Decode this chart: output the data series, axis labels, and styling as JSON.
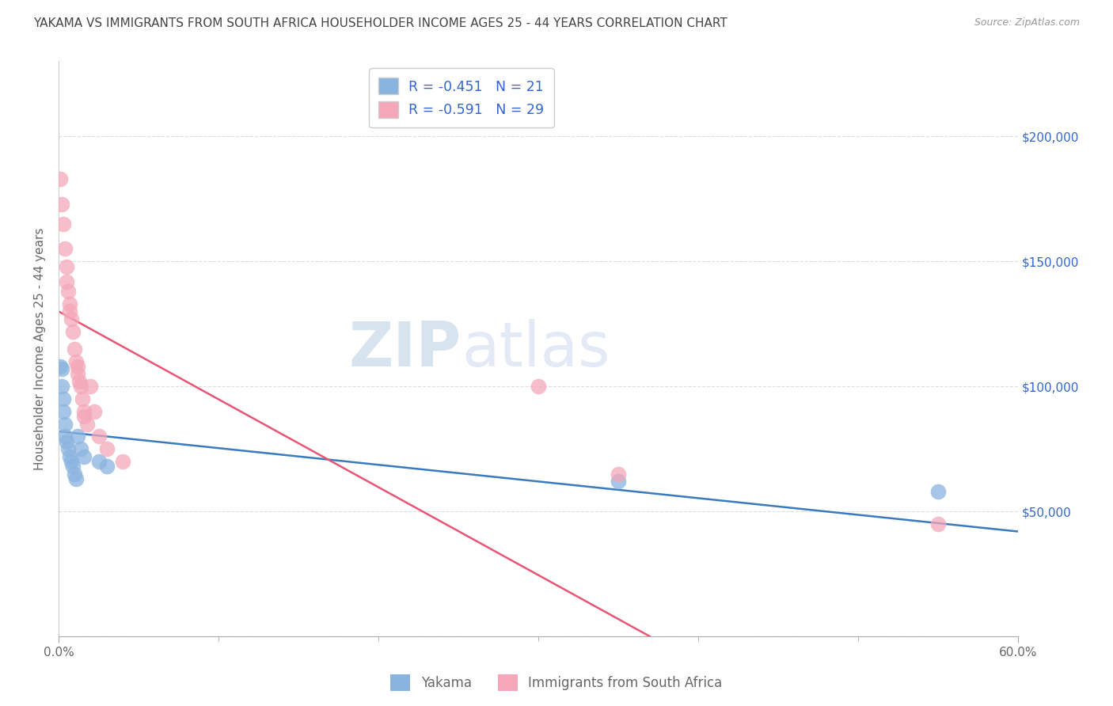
{
  "title": "YAKAMA VS IMMIGRANTS FROM SOUTH AFRICA HOUSEHOLDER INCOME AGES 25 - 44 YEARS CORRELATION CHART",
  "source": "Source: ZipAtlas.com",
  "ylabel": "Householder Income Ages 25 - 44 years",
  "watermark_zip": "ZIP",
  "watermark_atlas": "atlas",
  "yakama_x": [
    0.001,
    0.002,
    0.002,
    0.003,
    0.003,
    0.004,
    0.004,
    0.005,
    0.006,
    0.007,
    0.008,
    0.009,
    0.01,
    0.011,
    0.012,
    0.014,
    0.016,
    0.025,
    0.03,
    0.35,
    0.55
  ],
  "yakama_y": [
    108000,
    107000,
    100000,
    95000,
    90000,
    85000,
    80000,
    78000,
    75000,
    72000,
    70000,
    68000,
    65000,
    63000,
    80000,
    75000,
    72000,
    70000,
    68000,
    62000,
    58000
  ],
  "sa_x": [
    0.001,
    0.002,
    0.003,
    0.004,
    0.005,
    0.005,
    0.006,
    0.007,
    0.007,
    0.008,
    0.009,
    0.01,
    0.011,
    0.012,
    0.012,
    0.013,
    0.014,
    0.015,
    0.016,
    0.016,
    0.018,
    0.02,
    0.022,
    0.025,
    0.03,
    0.04,
    0.3,
    0.35,
    0.55
  ],
  "sa_y": [
    183000,
    173000,
    165000,
    155000,
    148000,
    142000,
    138000,
    133000,
    130000,
    127000,
    122000,
    115000,
    110000,
    108000,
    105000,
    102000,
    100000,
    95000,
    90000,
    88000,
    85000,
    100000,
    90000,
    80000,
    75000,
    70000,
    100000,
    65000,
    45000
  ],
  "R_yakama": -0.451,
  "N_yakama": 21,
  "R_sa": -0.591,
  "N_sa": 29,
  "yakama_color": "#8ab4e0",
  "sa_color": "#f4a7b9",
  "yakama_line_color": "#3a7abf",
  "sa_line_color": "#e85575",
  "sa_trend_dash_color": "#d4b8bc",
  "xlim": [
    0.0,
    0.6
  ],
  "ylim": [
    0,
    230000
  ],
  "yticks": [
    0,
    50000,
    100000,
    150000,
    200000
  ],
  "xtick_vals": [
    0.0,
    0.6
  ],
  "xtick_labels": [
    "0.0%",
    "60.0%"
  ],
  "xtick_minor_vals": [
    0.1,
    0.2,
    0.3,
    0.4,
    0.5
  ],
  "right_ytick_labels": [
    "$50,000",
    "$100,000",
    "$150,000",
    "$200,000"
  ],
  "right_ytick_vals": [
    50000,
    100000,
    150000,
    200000
  ],
  "legend_x_label": "Yakama",
  "legend_sa_label": "Immigrants from South Africa",
  "bg_color": "#ffffff",
  "grid_color": "#dddddd",
  "title_color": "#444444",
  "axis_label_color": "#666666",
  "right_tick_color": "#3366cc",
  "watermark_color": "#ccd9ee"
}
